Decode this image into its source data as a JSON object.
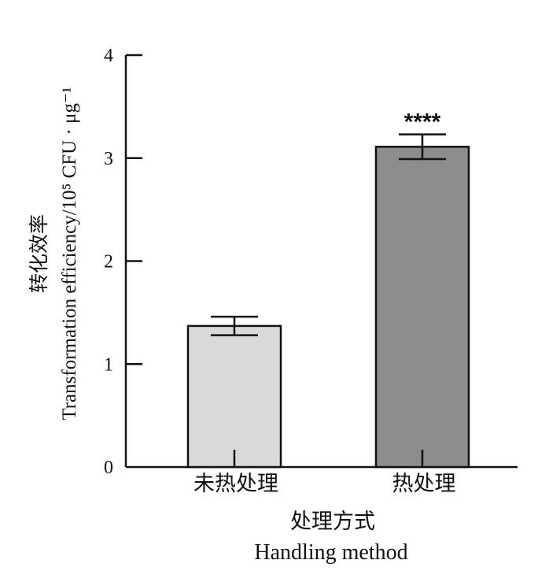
{
  "chart_data": {
    "type": "bar",
    "categories": [
      "未热处理",
      "热处理"
    ],
    "values": [
      1.37,
      3.11
    ],
    "errors": [
      0.09,
      0.12
    ],
    "significance": [
      "",
      "****"
    ],
    "bar_colors": [
      "#d9d9d9",
      "#8c8c8c"
    ],
    "ylim": [
      0,
      4
    ],
    "yticks": [
      "0",
      "1",
      "2",
      "3",
      "4"
    ],
    "xlabel_cn": "处理方式",
    "xlabel_en": "Handling method",
    "ylabel_cn": "转化效率",
    "ylabel_en": "Transformation efficiency/10⁵ CFU · μg⁻¹",
    "grid": false,
    "legend": "none"
  }
}
